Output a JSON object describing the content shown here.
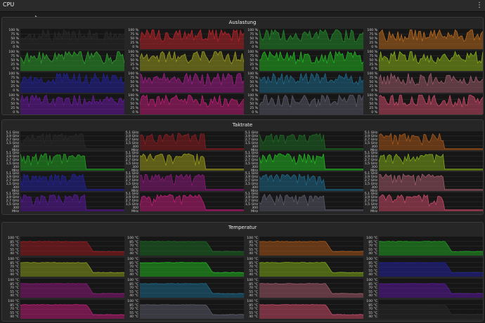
{
  "window": {
    "title": "CPU",
    "menu_icon": "kebab-menu-icon"
  },
  "panels": [
    {
      "id": "load",
      "title": "Auslastung",
      "y_labels": [
        "100 %",
        "75 %",
        "50 %",
        "25 %",
        "0 %"
      ],
      "pattern": "load",
      "colors": [
        "#2a2a2a",
        "#b8242a",
        "#238a2a",
        "#b86a1e",
        "#2e9e2e",
        "#9a9a20",
        "#22b422",
        "#88b01a",
        "#22229a",
        "#a01e88",
        "#1e6a8a",
        "#9a5a6a",
        "#6a1aa0",
        "#c01e78",
        "#5a5a6a",
        "#c84a68"
      ]
    },
    {
      "id": "clock",
      "title": "Taktrate",
      "y_labels": [
        "5,1 GHz",
        "3,9 GHz",
        "2,7 GHz",
        "1,5 GHz",
        "300 MHz"
      ],
      "pattern": "clock",
      "colors": [
        "#2a2a2a",
        "#8a1e22",
        "#1e6a22",
        "#a8581a",
        "#22a022",
        "#9a9a1c",
        "#22b822",
        "#7ea81a",
        "#22229a",
        "#8a1a7a",
        "#1e6a8a",
        "#a05a6a",
        "#5a1a9a",
        "#c01e78",
        "#5a5a6a",
        "#c84a68"
      ]
    },
    {
      "id": "temp",
      "title": "Temperatur",
      "y_labels": [
        "100 °C",
        "85 °C",
        "70 °C",
        "55 °C",
        "40 °C"
      ],
      "pattern": "temp",
      "colors": [
        "#9a1e22",
        "#1e6a22",
        "#a8581a",
        "#22a022",
        "#8a9a1c",
        "#22b422",
        "#7ea81a",
        "#22229a",
        "#8a1a7a",
        "#1e6a8a",
        "#a05a6a",
        "#5a1a9a",
        "#c01e78",
        "#5a5a6a",
        "#c84a68",
        "#2a2a2a"
      ]
    }
  ]
}
